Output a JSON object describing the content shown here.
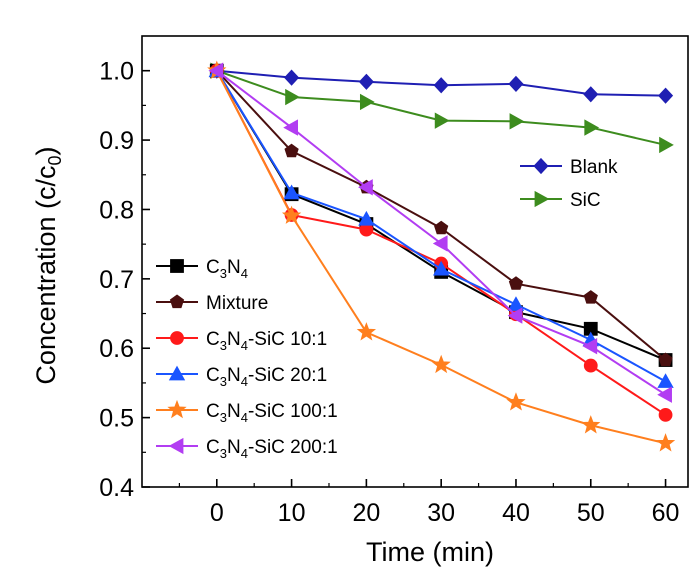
{
  "chart_data": {
    "type": "line",
    "xlabel": "Time (min)",
    "ylabel": "Concentration (c/c",
    "ylabel_sub": "0",
    "ylabel_close": ")",
    "xlim": [
      -10,
      63
    ],
    "ylim": [
      0.4,
      1.05
    ],
    "x_ticks": [
      0,
      10,
      20,
      30,
      40,
      50,
      60
    ],
    "x_tick_labels": [
      "0",
      "10",
      "20",
      "30",
      "40",
      "50",
      "60"
    ],
    "y_ticks": [
      0.4,
      0.5,
      0.6,
      0.7,
      0.8,
      0.9,
      1.0
    ],
    "y_tick_labels": [
      "0.4",
      "0.5",
      "0.6",
      "0.7",
      "0.8",
      "0.9",
      "1.0"
    ],
    "x": [
      0,
      10,
      20,
      30,
      40,
      50,
      60
    ],
    "series": [
      {
        "name": "Blank",
        "label_parts": [
          {
            "t": "Blank"
          }
        ],
        "color": "#1f1fb3",
        "marker": "diamond",
        "values": [
          1.0,
          0.99,
          0.984,
          0.979,
          0.981,
          0.966,
          0.964
        ]
      },
      {
        "name": "SiC",
        "label_parts": [
          {
            "t": "SiC"
          }
        ],
        "color": "#3d8c1e",
        "marker": "triangle-right",
        "values": [
          1.0,
          0.962,
          0.955,
          0.928,
          0.927,
          0.918,
          0.893
        ]
      },
      {
        "name": "C3N4",
        "label_parts": [
          {
            "t": "C"
          },
          {
            "t": "3",
            "sub": true
          },
          {
            "t": "N"
          },
          {
            "t": "4",
            "sub": true
          }
        ],
        "color": "#000000",
        "marker": "square",
        "values": [
          1.0,
          0.822,
          0.779,
          0.71,
          0.652,
          0.628,
          0.583
        ]
      },
      {
        "name": "Mixture",
        "label_parts": [
          {
            "t": "Mixture"
          }
        ],
        "color": "#4a0f0f",
        "marker": "pentagon",
        "values": [
          1.0,
          0.884,
          0.832,
          0.773,
          0.693,
          0.673,
          0.583
        ]
      },
      {
        "name": "C3N4-SiC 10:1",
        "label_parts": [
          {
            "t": "C"
          },
          {
            "t": "3",
            "sub": true
          },
          {
            "t": "N"
          },
          {
            "t": "4",
            "sub": true
          },
          {
            "t": "-SiC 10:1"
          }
        ],
        "color": "#ff1a1a",
        "marker": "circle",
        "values": [
          1.0,
          0.792,
          0.771,
          0.722,
          0.649,
          0.575,
          0.504
        ]
      },
      {
        "name": "C3N4-SiC 20:1",
        "label_parts": [
          {
            "t": "C"
          },
          {
            "t": "3",
            "sub": true
          },
          {
            "t": "N"
          },
          {
            "t": "4",
            "sub": true
          },
          {
            "t": "-SiC 20:1"
          }
        ],
        "color": "#1a55ff",
        "marker": "triangle-up",
        "values": [
          1.0,
          0.824,
          0.786,
          0.714,
          0.663,
          0.612,
          0.552
        ]
      },
      {
        "name": "C3N4-SiC 100:1",
        "label_parts": [
          {
            "t": "C"
          },
          {
            "t": "3",
            "sub": true
          },
          {
            "t": "N"
          },
          {
            "t": "4",
            "sub": true
          },
          {
            "t": "-SiC 100:1"
          }
        ],
        "color": "#ff7f1e",
        "marker": "star",
        "values": [
          1.0,
          0.791,
          0.623,
          0.576,
          0.522,
          0.489,
          0.463
        ]
      },
      {
        "name": "C3N4-SiC 200:1",
        "label_parts": [
          {
            "t": "C"
          },
          {
            "t": "3",
            "sub": true
          },
          {
            "t": "N"
          },
          {
            "t": "4",
            "sub": true
          },
          {
            "t": "-SiC 200:1"
          }
        ],
        "color": "#b23df2",
        "marker": "triangle-left",
        "values": [
          1.0,
          0.918,
          0.832,
          0.751,
          0.647,
          0.603,
          0.533
        ]
      }
    ],
    "legends": [
      {
        "position": "upper-right",
        "series": [
          "Blank",
          "SiC"
        ]
      },
      {
        "position": "lower-left",
        "series": [
          "C3N4",
          "Mixture",
          "C3N4-SiC 10:1",
          "C3N4-SiC 20:1",
          "C3N4-SiC 100:1",
          "C3N4-SiC 200:1"
        ]
      }
    ],
    "grid": false
  }
}
